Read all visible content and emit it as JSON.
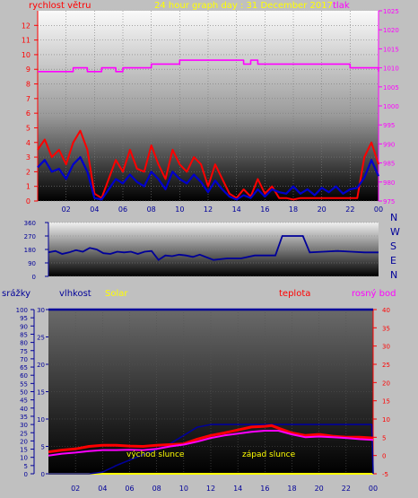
{
  "header": {
    "wind_label": "rychlost větru",
    "graph_title": "24 hour graph day : 31 December 2017",
    "pressure_label": "tlak"
  },
  "direction_letters": [
    "N",
    "W",
    "S",
    "E",
    "N"
  ],
  "bottom_legend": {
    "rain": "srážky",
    "humidity": "vlhkost",
    "solar": "Solar",
    "temperature": "teplota",
    "dewpoint": "rosný bod"
  },
  "annotations": {
    "sunrise": "východ slunce",
    "sunset": "západ slunce"
  },
  "colors": {
    "wind_gust": "#ff0000",
    "wind_avg": "#0000cc",
    "pressure": "#ff00ff",
    "direction": "#000099",
    "temperature": "#ff0000",
    "dewpoint": "#ff00ff",
    "humidity": "#000099",
    "solar": "#ffff00",
    "rain": "#000099"
  },
  "chart_data": [
    {
      "type": "line",
      "name": "wind-pressure",
      "x_ticks": [
        "02",
        "04",
        "06",
        "08",
        "10",
        "12",
        "14",
        "16",
        "18",
        "20",
        "22",
        "00"
      ],
      "y_left_ticks": [
        0,
        1,
        2,
        3,
        4,
        5,
        6,
        7,
        8,
        9,
        10,
        11,
        12
      ],
      "y_left_range": [
        0,
        13
      ],
      "y_right_ticks": [
        975,
        980,
        985,
        990,
        995,
        1000,
        1005,
        1010,
        1015,
        1020,
        1025
      ],
      "y_right_range": [
        975,
        1025
      ],
      "x_range": [
        0,
        24
      ],
      "series": [
        {
          "key": "gust",
          "axis": "left",
          "x": [
            0,
            0.5,
            1,
            1.5,
            2,
            2.5,
            3,
            3.5,
            4,
            4.5,
            5,
            5.5,
            6,
            6.5,
            7,
            7.5,
            8,
            8.5,
            9,
            9.5,
            10,
            10.5,
            11,
            11.5,
            12,
            12.5,
            13,
            13.5,
            14,
            14.5,
            15,
            15.5,
            16,
            16.5,
            17,
            17.5,
            18,
            18.5,
            19,
            19.5,
            20,
            20.5,
            21,
            21.5,
            22,
            22.5,
            23,
            23.5,
            24
          ],
          "y": [
            3.5,
            4.2,
            3.0,
            3.5,
            2.5,
            4.0,
            4.8,
            3.5,
            0.5,
            0.2,
            1.5,
            2.8,
            2.0,
            3.5,
            2.2,
            2.0,
            3.8,
            2.5,
            1.5,
            3.5,
            2.5,
            2.0,
            3.0,
            2.5,
            1.0,
            2.5,
            1.5,
            0.5,
            0.2,
            0.8,
            0.3,
            1.5,
            0.5,
            1.0,
            0.2,
            0.2,
            0.1,
            0.2,
            0.2,
            0.2,
            0.2,
            0.2,
            0.2,
            0.2,
            0.2,
            0.2,
            3.0,
            4.0,
            2.5
          ]
        },
        {
          "key": "average",
          "axis": "left",
          "x": [
            0,
            0.5,
            1,
            1.5,
            2,
            2.5,
            3,
            3.5,
            4,
            4.5,
            5,
            5.5,
            6,
            6.5,
            7,
            7.5,
            8,
            8.5,
            9,
            9.5,
            10,
            10.5,
            11,
            11.5,
            12,
            12.5,
            13,
            13.5,
            14,
            14.5,
            15,
            15.5,
            16,
            16.5,
            17,
            17.5,
            18,
            18.5,
            19,
            19.5,
            20,
            20.5,
            21,
            21.5,
            22,
            22.5,
            23,
            23.5,
            24
          ],
          "y": [
            2.3,
            2.8,
            2.0,
            2.2,
            1.5,
            2.5,
            3.0,
            2.0,
            0.2,
            0.1,
            0.8,
            1.5,
            1.2,
            1.8,
            1.3,
            1.0,
            2.0,
            1.5,
            0.8,
            2.0,
            1.5,
            1.2,
            1.8,
            1.3,
            0.6,
            1.4,
            0.8,
            0.3,
            0.1,
            0.4,
            0.2,
            0.8,
            0.3,
            0.8,
            0.6,
            0.5,
            1.0,
            0.5,
            0.8,
            0.4,
            0.9,
            0.6,
            1.0,
            0.5,
            0.8,
            0.9,
            1.6,
            2.8,
            1.7
          ]
        },
        {
          "key": "pressure",
          "axis": "right",
          "x": [
            0,
            2,
            2.5,
            3,
            3.5,
            4,
            4.5,
            5,
            5.5,
            6,
            7,
            8,
            9,
            10,
            12,
            13,
            14,
            14.5,
            15,
            15.5,
            16,
            18,
            20,
            22,
            23,
            23.5,
            24
          ],
          "y": [
            1009,
            1009,
            1010,
            1010,
            1009,
            1009,
            1010,
            1010,
            1009,
            1010,
            1010,
            1011,
            1011,
            1012,
            1012,
            1012,
            1012,
            1011,
            1012,
            1011,
            1011,
            1011,
            1011,
            1010,
            1010,
            1010,
            1009
          ]
        }
      ]
    },
    {
      "type": "line",
      "name": "wind-direction",
      "x_range": [
        0,
        24
      ],
      "y_ticks": [
        0,
        90,
        180,
        270,
        360
      ],
      "y_range": [
        0,
        360
      ],
      "series": [
        {
          "key": "direction",
          "x": [
            0,
            0.5,
            1,
            1.5,
            2,
            2.5,
            3,
            3.5,
            4,
            4.5,
            5,
            5.5,
            6,
            6.5,
            7,
            7.5,
            8,
            8.5,
            9,
            9.5,
            10,
            10.5,
            11,
            12,
            13,
            14,
            15,
            16,
            16.5,
            17,
            17.5,
            18,
            18.5,
            19,
            20,
            21,
            22,
            23,
            24
          ],
          "y": [
            160,
            170,
            150,
            160,
            175,
            165,
            190,
            180,
            155,
            150,
            165,
            160,
            165,
            150,
            165,
            170,
            110,
            140,
            135,
            145,
            140,
            130,
            145,
            110,
            120,
            120,
            140,
            140,
            140,
            270,
            270,
            270,
            270,
            160,
            165,
            170,
            165,
            160,
            160
          ]
        }
      ]
    },
    {
      "type": "line",
      "name": "temperature-humidity-solar",
      "x_ticks": [
        "02",
        "04",
        "06",
        "08",
        "10",
        "12",
        "14",
        "16",
        "18",
        "20",
        "22",
        "00"
      ],
      "x_range": [
        0,
        24
      ],
      "y_left_ticks": [
        0,
        5,
        10,
        15,
        20,
        25,
        30,
        35,
        40,
        45,
        50,
        55,
        60,
        65,
        70,
        75,
        80,
        85,
        90,
        95,
        100
      ],
      "y_left_range": [
        0,
        100
      ],
      "y_mid_ticks": [
        0,
        5,
        10,
        15,
        20,
        25,
        30
      ],
      "y_mid_range": [
        0,
        30
      ],
      "y_right_ticks": [
        -5,
        0,
        5,
        10,
        15,
        20,
        25,
        30,
        35,
        40
      ],
      "y_right_range": [
        -5,
        40
      ],
      "series": [
        {
          "key": "temperature",
          "axis": "right",
          "x": [
            0,
            1,
            2,
            3,
            4,
            5,
            6,
            7,
            8,
            9,
            10,
            11,
            12,
            13,
            14,
            15,
            16,
            16.5,
            17,
            18,
            19,
            20,
            21,
            22,
            23,
            24
          ],
          "y": [
            1,
            1.5,
            1.8,
            2.5,
            2.8,
            2.8,
            2.6,
            2.5,
            2.8,
            3.0,
            3.2,
            4.5,
            5.5,
            6.2,
            7.0,
            7.8,
            8.0,
            8.2,
            7.5,
            6.2,
            5.5,
            5.8,
            5.3,
            5.0,
            5.0,
            4.8
          ]
        },
        {
          "key": "dewpoint",
          "axis": "right",
          "x": [
            0,
            1,
            2,
            3,
            4,
            5,
            6,
            7,
            8,
            9,
            10,
            11,
            12,
            13,
            14,
            15,
            16,
            17,
            18,
            19,
            20,
            21,
            22,
            23,
            24
          ],
          "y": [
            0,
            0.5,
            0.8,
            1.2,
            1.5,
            1.5,
            1.6,
            1.5,
            1.8,
            2.5,
            3.0,
            3.8,
            4.8,
            5.5,
            6.0,
            6.5,
            6.8,
            6.8,
            5.8,
            5.0,
            5.2,
            5.0,
            4.8,
            4.5,
            4.3
          ]
        },
        {
          "key": "humidity",
          "axis": "left",
          "x": [
            0,
            4,
            5,
            6,
            7,
            8,
            9,
            10,
            11,
            12,
            22,
            24
          ],
          "y": [
            100,
            100,
            100,
            100,
            100,
            100,
            100,
            100,
            100,
            100,
            100,
            100
          ]
        },
        {
          "key": "rain",
          "axis": "mid",
          "x": [
            0,
            2,
            3,
            4,
            5,
            6,
            7,
            8,
            9,
            10,
            11,
            12,
            13,
            23.9,
            24
          ],
          "y": [
            0,
            0,
            0,
            0.3,
            1.5,
            2.5,
            3.5,
            4.5,
            5.5,
            7.0,
            8.5,
            9.0,
            9.0,
            9.0,
            0
          ]
        },
        {
          "key": "solar",
          "axis": "left",
          "x": [
            0,
            24
          ],
          "y": [
            0,
            0
          ]
        }
      ]
    }
  ]
}
